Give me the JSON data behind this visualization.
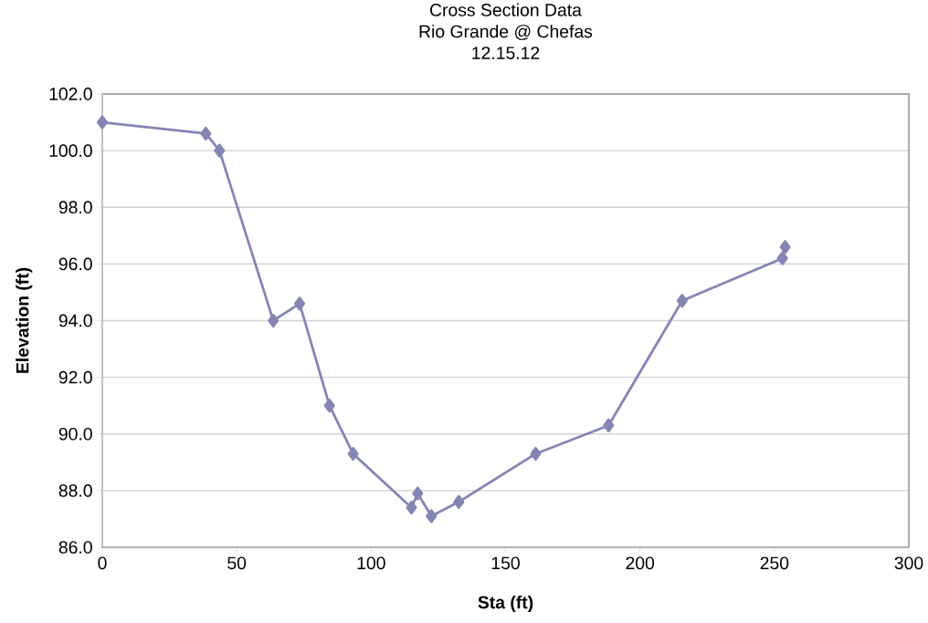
{
  "chart_data": {
    "type": "line",
    "title": "Cross Section Data\nRio Grande @ Chefas\n12.15.12",
    "xlabel": "Sta (ft)",
    "ylabel": "Elevation (ft)",
    "x": [
      0,
      38.5,
      43.6,
      63.6,
      73.4,
      84.5,
      93.3,
      115.0,
      117.3,
      122.4,
      132.6,
      161.2,
      188.3,
      215.7,
      253,
      254
    ],
    "series": [
      {
        "color": "#8585b5",
        "values": [
          101.0,
          100.6,
          100.0,
          94.0,
          94.6,
          91.0,
          89.3,
          87.4,
          87.9,
          87.1,
          87.6,
          89.3,
          90.3,
          94.7,
          96.2,
          96.6
        ]
      }
    ],
    "xlim": [
      0,
      300
    ],
    "xticks": [
      0,
      50,
      100,
      150,
      200,
      250,
      300
    ],
    "ylim": [
      86,
      102
    ],
    "yticks": [
      {
        "value": 86,
        "label": "86.0"
      },
      {
        "value": 88,
        "label": "88.0"
      },
      {
        "value": 90,
        "label": "90.0"
      },
      {
        "value": 92,
        "label": "92.0"
      },
      {
        "value": 94,
        "label": "94.0"
      },
      {
        "value": 96,
        "label": "96.0"
      },
      {
        "value": 98,
        "label": "98.0"
      },
      {
        "value": 100,
        "label": "100.0"
      },
      {
        "value": 102,
        "label": "102.0"
      }
    ],
    "grid": "y",
    "marker": "diamond",
    "line_style": "solid"
  }
}
